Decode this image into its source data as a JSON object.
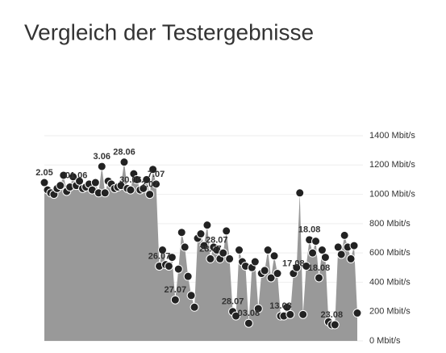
{
  "chart_data": {
    "type": "area",
    "title": "Vergleich der Testergebnisse",
    "values": [
      1080,
      1030,
      1010,
      1000,
      1040,
      1060,
      1130,
      1020,
      1050,
      1120,
      1060,
      1090,
      1040,
      1050,
      1070,
      1030,
      1080,
      1010,
      1190,
      1010,
      1090,
      1070,
      1040,
      1050,
      1060,
      1220,
      1040,
      1030,
      1140,
      1100,
      1030,
      1040,
      1100,
      1000,
      1170,
      1070,
      510,
      620,
      520,
      510,
      570,
      280,
      490,
      740,
      640,
      440,
      310,
      230,
      700,
      730,
      650,
      790,
      560,
      640,
      620,
      560,
      600,
      750,
      560,
      200,
      170,
      620,
      540,
      510,
      120,
      500,
      540,
      220,
      460,
      480,
      620,
      430,
      580,
      460,
      170,
      170,
      230,
      180,
      460,
      500,
      1010,
      180,
      510,
      690,
      600,
      680,
      430,
      620,
      570,
      130,
      110,
      110,
      640,
      590,
      720,
      640,
      560,
      650,
      190
    ],
    "categories": [
      "2.05",
      null,
      null,
      null,
      null,
      null,
      null,
      null,
      null,
      null,
      "01.06",
      null,
      null,
      null,
      null,
      null,
      null,
      null,
      "3.06",
      null,
      null,
      null,
      null,
      null,
      null,
      "28.06",
      null,
      "30.06",
      null,
      null,
      null,
      null,
      null,
      "2.07",
      null,
      "7.07",
      "26.07",
      null,
      null,
      null,
      null,
      "27.07",
      null,
      null,
      null,
      null,
      null,
      null,
      null,
      null,
      null,
      null,
      "28.07",
      null,
      "28.07",
      null,
      null,
      null,
      null,
      "28.07",
      null,
      null,
      null,
      null,
      "03.08",
      null,
      null,
      null,
      null,
      null,
      null,
      null,
      null,
      null,
      "13.08",
      null,
      null,
      null,
      "17.08",
      null,
      null,
      null,
      null,
      "18.08",
      null,
      null,
      "18.08",
      null,
      null,
      null,
      "23.08",
      null,
      null,
      null,
      null,
      null,
      null,
      null,
      null
    ],
    "color": "#999999",
    "point_color": "#222222",
    "ylim": [
      0,
      1400
    ],
    "yticks": [
      {
        "value": 0,
        "label": "0 Mbit/s"
      },
      {
        "value": 200,
        "label": "200 Mbit/s"
      },
      {
        "value": 400,
        "label": "400 Mbit/s"
      },
      {
        "value": 600,
        "label": "600 Mbit/s"
      },
      {
        "value": 800,
        "label": "800 Mbit/s"
      },
      {
        "value": 1000,
        "label": "1000 Mbit/s"
      },
      {
        "value": 1200,
        "label": "1200 Mbit/s"
      },
      {
        "value": 1400,
        "label": "1400 Mbit/s"
      }
    ],
    "grid": true
  }
}
